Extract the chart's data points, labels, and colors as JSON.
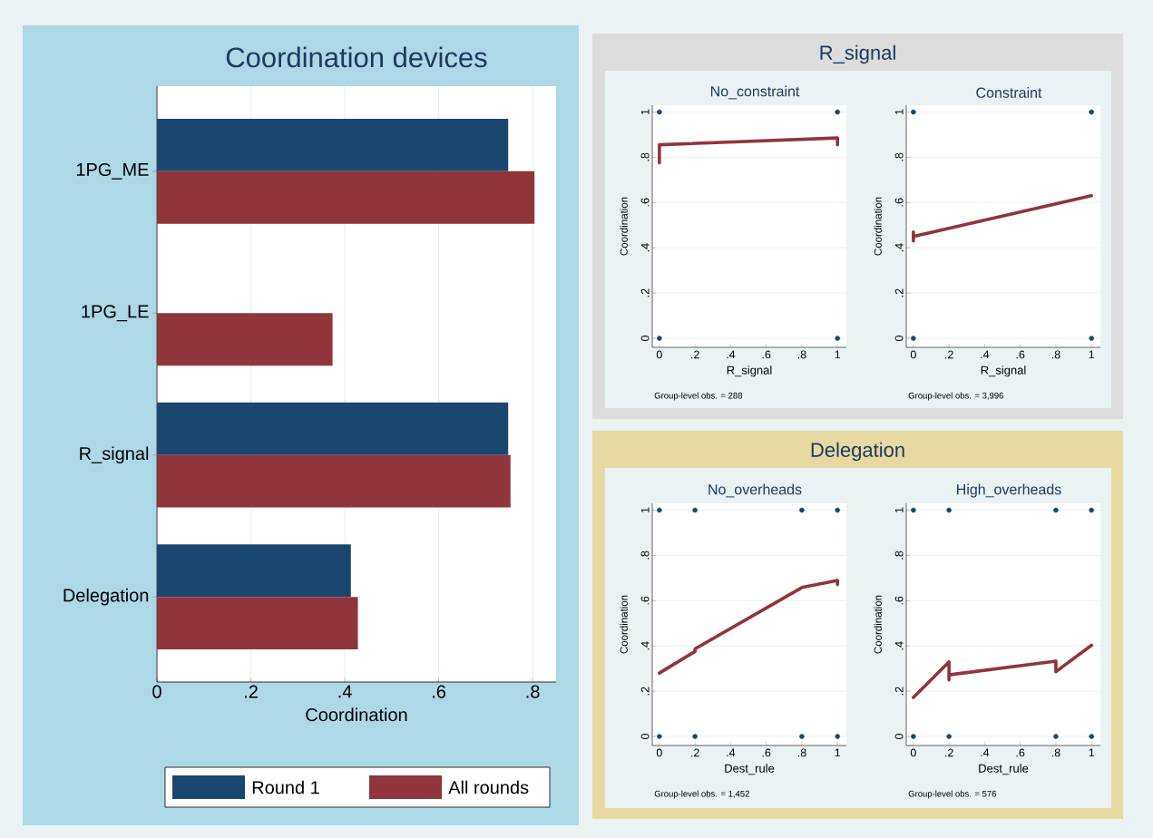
{
  "chart_data": [
    {
      "type": "bar",
      "orientation": "horizontal",
      "title": "Coordination devices",
      "xlabel": "Coordination",
      "categories": [
        "1PG_ME",
        "1PG_LE",
        "R_signal",
        "Delegation"
      ],
      "series": [
        {
          "name": "Round 1",
          "color": "#1a476f",
          "values": [
            0.748,
            null,
            0.748,
            0.413
          ]
        },
        {
          "name": "All rounds",
          "color": "#90353b",
          "values": [
            0.804,
            0.374,
            0.753,
            0.428
          ]
        }
      ],
      "xlim": [
        0,
        0.85
      ],
      "xticks": [
        0,
        {
          "value": 0.2,
          "label": ".2"
        },
        {
          "value": 0.4,
          "label": ".4"
        },
        {
          "value": 0.6,
          "label": ".6"
        },
        {
          "value": 0.8,
          "label": ".8"
        }
      ],
      "grid": "x",
      "legend": "bottom"
    },
    {
      "type": "other",
      "title": "R_signal"
    },
    {
      "type": "scatter",
      "title": "No_constraint",
      "xlabel": "R_signal",
      "ylabel": "Coordination",
      "annotations": [
        "Group-level obs. = 288"
      ],
      "series": [
        {
          "type": "scatter",
          "marker": "circle",
          "color": "#1a476f",
          "x": [
            0,
            1,
            0,
            1
          ],
          "values": [
            1,
            1,
            0,
            0
          ]
        },
        {
          "type": "line",
          "color": "#90353b",
          "x": [
            0,
            0,
            1,
            1
          ],
          "values": [
            0.775,
            0.855,
            0.885,
            0.855
          ]
        }
      ],
      "xlim": [
        -0.04,
        1.05
      ],
      "ylim": [
        -0.04,
        1.03
      ],
      "xticks": [
        0,
        {
          "value": 0.2,
          "label": ".2"
        },
        {
          "value": 0.4,
          "label": ".4"
        },
        {
          "value": 0.6,
          "label": ".6"
        },
        {
          "value": 0.8,
          "label": ".8"
        },
        1
      ],
      "yticks": [
        0,
        {
          "value": 0.2,
          "label": ".2"
        },
        {
          "value": 0.4,
          "label": ".4"
        },
        {
          "value": 0.6,
          "label": ".6"
        },
        {
          "value": 0.8,
          "label": ".8"
        },
        1
      ],
      "grid": "y"
    },
    {
      "type": "scatter",
      "title": "Constraint",
      "xlabel": "R_signal",
      "ylabel": "Coordination",
      "annotations": [
        "Group-level obs. = 3,996"
      ],
      "series": [
        {
          "type": "scatter",
          "marker": "circle",
          "color": "#1a476f",
          "x": [
            0,
            1,
            0,
            1
          ],
          "values": [
            1,
            1,
            0,
            0
          ]
        },
        {
          "type": "line",
          "color": "#90353b",
          "x": [
            0,
            0,
            0,
            1
          ],
          "values": [
            0.43,
            0.47,
            0.45,
            0.63
          ]
        }
      ],
      "xlim": [
        -0.04,
        1.05
      ],
      "ylim": [
        -0.04,
        1.03
      ],
      "xticks": [
        0,
        {
          "value": 0.2,
          "label": ".2"
        },
        {
          "value": 0.4,
          "label": ".4"
        },
        {
          "value": 0.6,
          "label": ".6"
        },
        {
          "value": 0.8,
          "label": ".8"
        },
        1
      ],
      "yticks": [
        0,
        {
          "value": 0.2,
          "label": ".2"
        },
        {
          "value": 0.4,
          "label": ".4"
        },
        {
          "value": 0.6,
          "label": ".6"
        },
        {
          "value": 0.8,
          "label": ".8"
        },
        1
      ],
      "grid": "y"
    },
    {
      "type": "other",
      "title": "Delegation"
    },
    {
      "type": "scatter",
      "title": "No_overheads",
      "xlabel": "Dest_rule",
      "ylabel": "Coordination",
      "annotations": [
        "Group-level obs. = 1,452"
      ],
      "series": [
        {
          "type": "scatter",
          "marker": "circle",
          "color": "#1a476f",
          "x": [
            0,
            0.2,
            0.8,
            1,
            0,
            0.2,
            0.8,
            1
          ],
          "values": [
            1,
            1,
            1,
            1,
            0,
            0,
            0,
            0
          ]
        },
        {
          "type": "line",
          "color": "#90353b",
          "x": [
            0,
            0.2,
            0.2,
            0.8,
            1,
            1
          ],
          "values": [
            0.28,
            0.375,
            0.387,
            0.658,
            0.689,
            0.671
          ]
        }
      ],
      "xlim": [
        -0.04,
        1.05
      ],
      "ylim": [
        -0.04,
        1.03
      ],
      "xticks": [
        0,
        {
          "value": 0.2,
          "label": ".2"
        },
        {
          "value": 0.4,
          "label": ".4"
        },
        {
          "value": 0.6,
          "label": ".6"
        },
        {
          "value": 0.8,
          "label": ".8"
        },
        1
      ],
      "yticks": [
        0,
        {
          "value": 0.2,
          "label": ".2"
        },
        {
          "value": 0.4,
          "label": ".4"
        },
        {
          "value": 0.6,
          "label": ".6"
        },
        {
          "value": 0.8,
          "label": ".8"
        },
        1
      ],
      "grid": "y"
    },
    {
      "type": "scatter",
      "title": "High_overheads",
      "xlabel": "Dest_rule",
      "ylabel": "Coordination",
      "annotations": [
        "Group-level obs. = 576"
      ],
      "series": [
        {
          "type": "scatter",
          "marker": "circle",
          "color": "#1a476f",
          "x": [
            0,
            0.2,
            0.8,
            1,
            0,
            0.2,
            0.8,
            1
          ],
          "values": [
            1,
            1,
            1,
            1,
            0,
            0,
            0,
            0
          ]
        },
        {
          "type": "line",
          "color": "#90353b",
          "x": [
            0,
            0.2,
            0.2,
            0.2,
            0.8,
            0.8,
            1
          ],
          "values": [
            0.172,
            0.33,
            0.25,
            0.272,
            0.333,
            0.286,
            0.403
          ]
        }
      ],
      "xlim": [
        -0.04,
        1.05
      ],
      "ylim": [
        -0.04,
        1.03
      ],
      "xticks": [
        0,
        {
          "value": 0.2,
          "label": ".2"
        },
        {
          "value": 0.4,
          "label": ".4"
        },
        {
          "value": 0.6,
          "label": ".6"
        },
        {
          "value": 0.8,
          "label": ".8"
        },
        1
      ],
      "yticks": [
        0,
        {
          "value": 0.2,
          "label": ".2"
        },
        {
          "value": 0.4,
          "label": ".4"
        },
        {
          "value": 0.6,
          "label": ".6"
        },
        {
          "value": 0.8,
          "label": ".8"
        },
        1
      ],
      "grid": "y"
    }
  ]
}
